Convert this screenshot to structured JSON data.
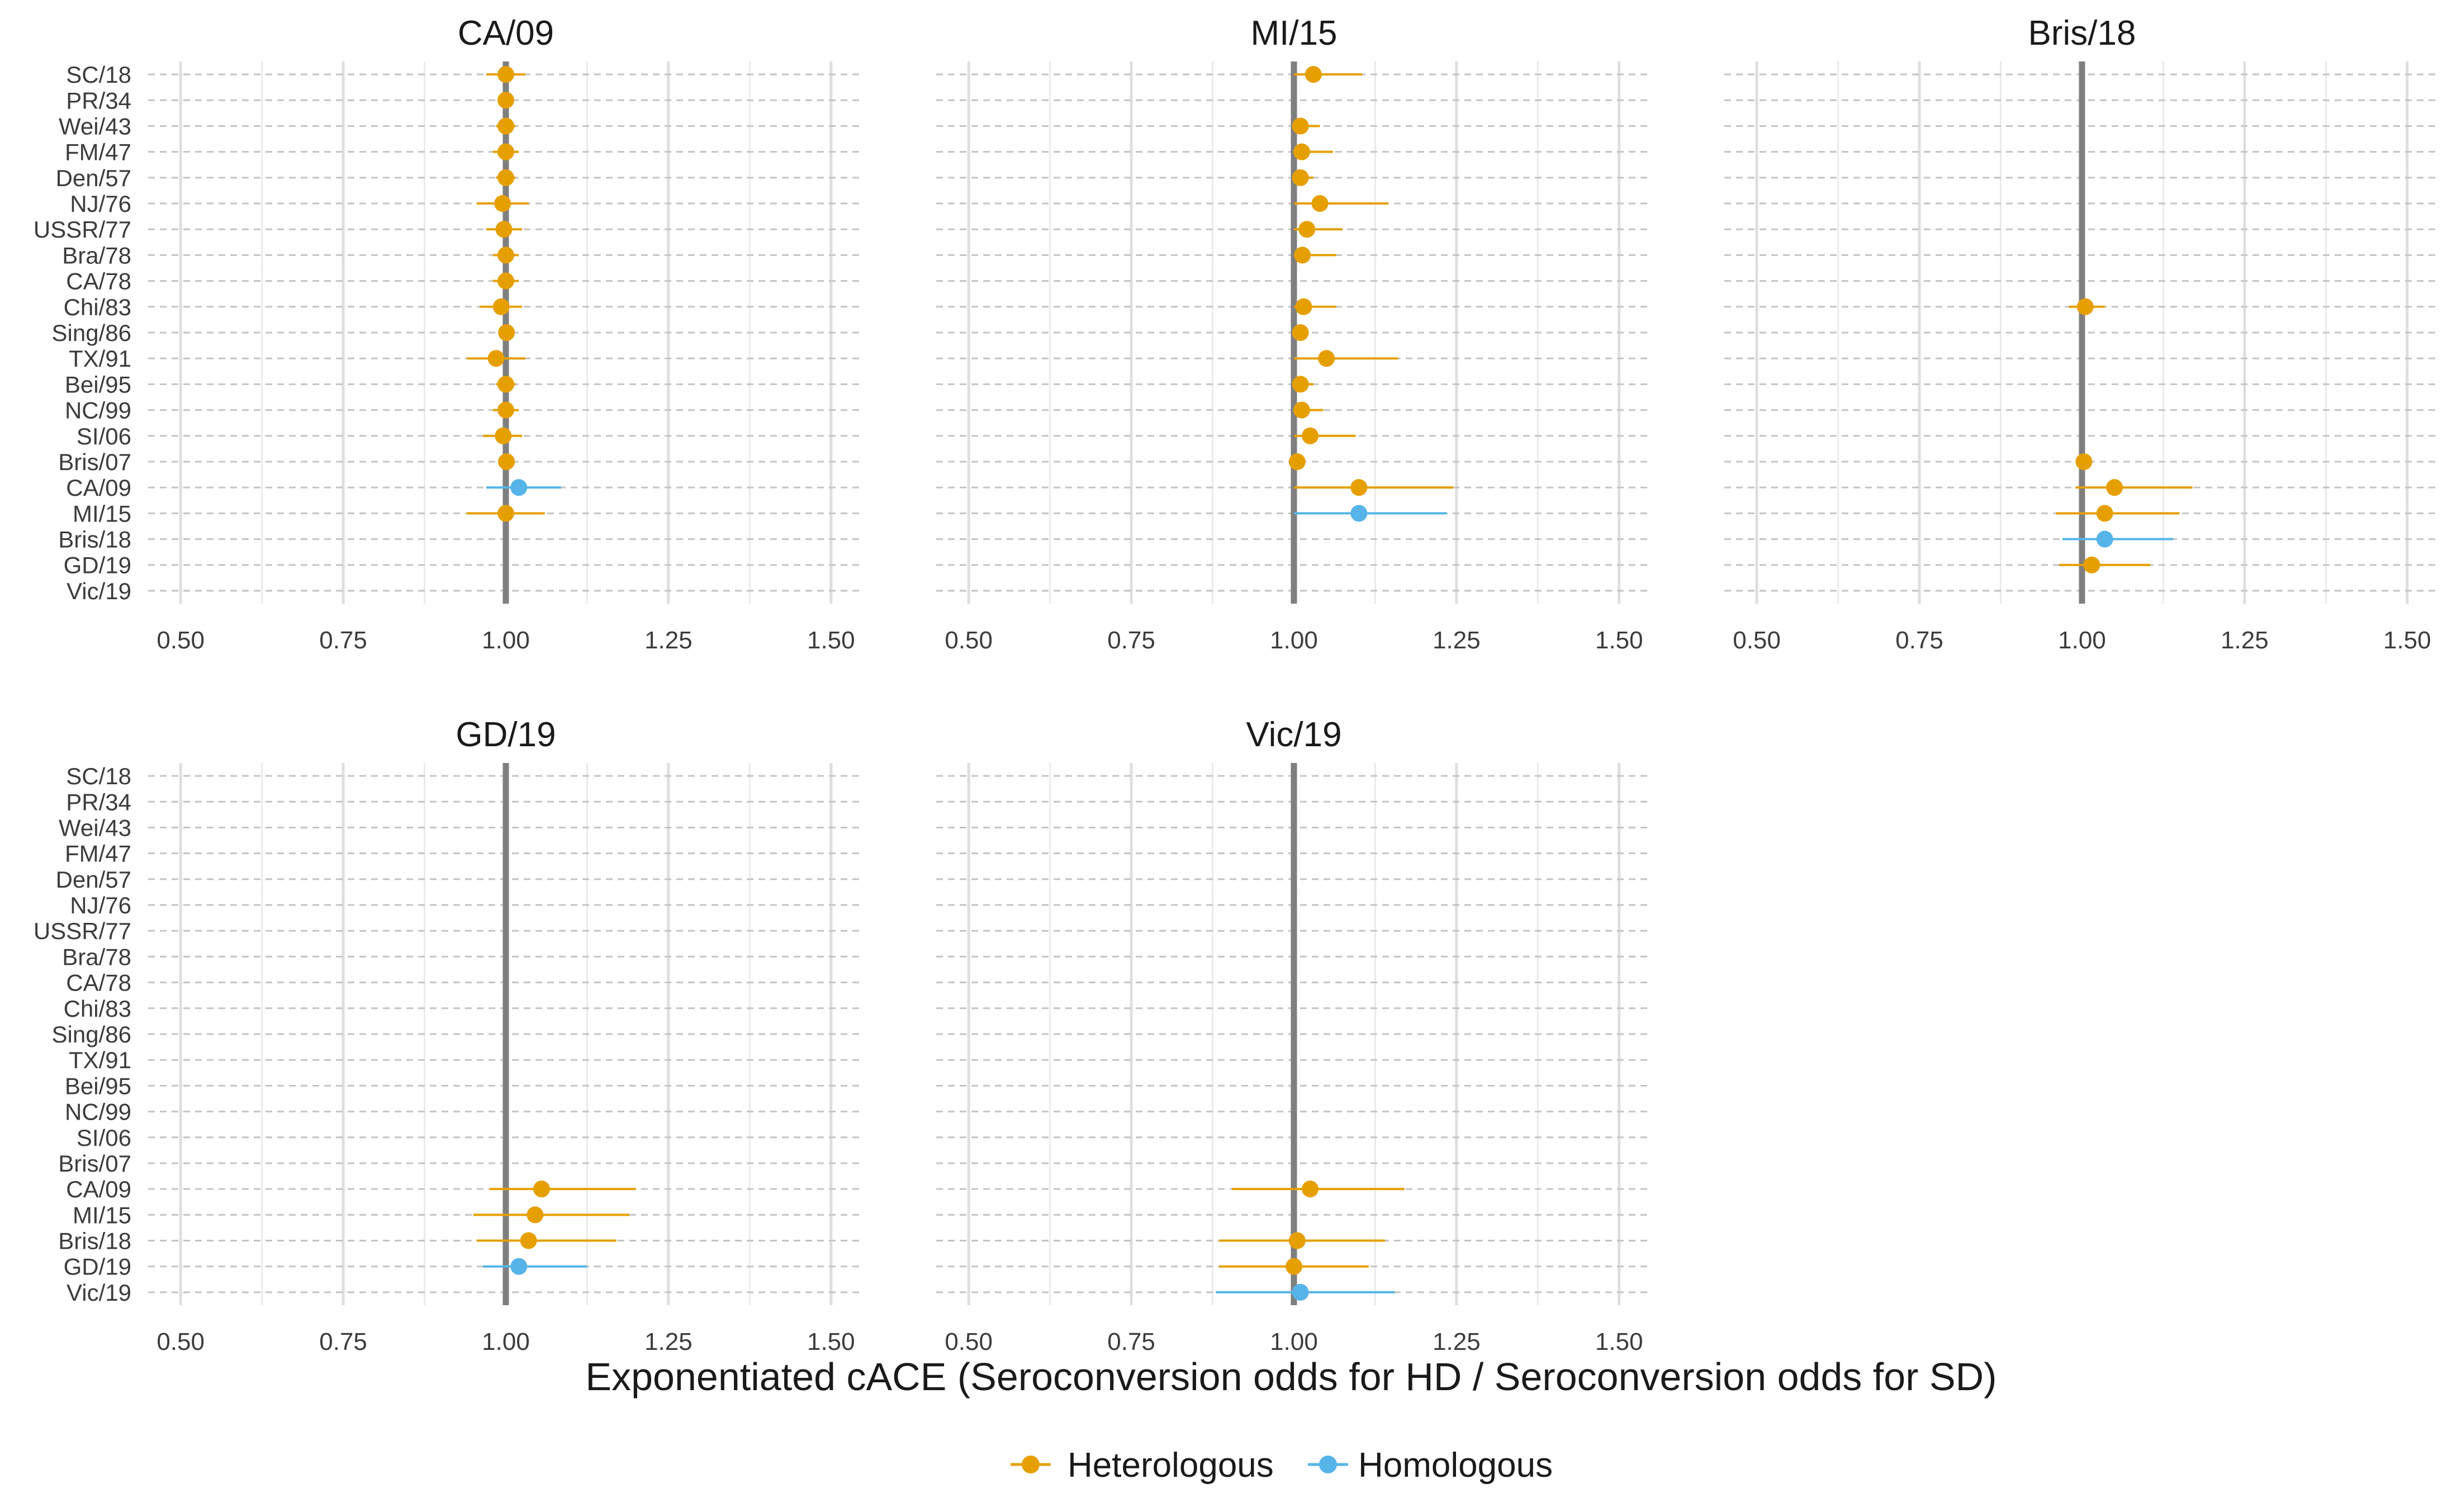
{
  "chart_data": {
    "type": "forest",
    "xlabel": "Exponentiated cACE (Seroconversion odds for HD / Seroconversion odds for SD)",
    "xlim": [
      0.45,
      1.55
    ],
    "xticks": [
      0.5,
      0.75,
      1.0,
      1.25,
      1.5
    ],
    "xtick_labels": [
      "0.50",
      "0.75",
      "1.00",
      "1.25",
      "1.50"
    ],
    "reference_line": 1.0,
    "grid": true,
    "legend": {
      "position": "bottom",
      "entries": [
        {
          "key": "heterologous",
          "label": "Heterologous",
          "color": "#E69F00"
        },
        {
          "key": "homologous",
          "label": "Homologous",
          "color": "#56B4E9"
        }
      ]
    },
    "strains": [
      "SC/18",
      "PR/34",
      "Wei/43",
      "FM/47",
      "Den/57",
      "NJ/76",
      "USSR/77",
      "Bra/78",
      "CA/78",
      "Chi/83",
      "Sing/86",
      "TX/91",
      "Bei/95",
      "NC/99",
      "SI/06",
      "Bris/07",
      "CA/09",
      "MI/15",
      "Bris/18",
      "GD/19",
      "Vic/19"
    ],
    "panels": [
      {
        "title": "CA/09",
        "points": [
          {
            "strain": "SC/18",
            "est": 1.0,
            "lo": 0.97,
            "hi": 1.03,
            "group": "heterologous"
          },
          {
            "strain": "PR/34",
            "est": 1.0,
            "lo": 0.995,
            "hi": 1.005,
            "group": "heterologous"
          },
          {
            "strain": "Wei/43",
            "est": 1.0,
            "lo": 0.985,
            "hi": 1.015,
            "group": "heterologous"
          },
          {
            "strain": "FM/47",
            "est": 1.0,
            "lo": 0.98,
            "hi": 1.02,
            "group": "heterologous"
          },
          {
            "strain": "Den/57",
            "est": 1.0,
            "lo": 0.985,
            "hi": 1.015,
            "group": "heterologous"
          },
          {
            "strain": "NJ/76",
            "est": 0.995,
            "lo": 0.955,
            "hi": 1.035,
            "group": "heterologous"
          },
          {
            "strain": "USSR/77",
            "est": 0.997,
            "lo": 0.97,
            "hi": 1.025,
            "group": "heterologous"
          },
          {
            "strain": "Bra/78",
            "est": 1.0,
            "lo": 0.98,
            "hi": 1.02,
            "group": "heterologous"
          },
          {
            "strain": "CA/78",
            "est": 1.0,
            "lo": 0.98,
            "hi": 1.02,
            "group": "heterologous"
          },
          {
            "strain": "Chi/83",
            "est": 0.993,
            "lo": 0.96,
            "hi": 1.025,
            "group": "heterologous"
          },
          {
            "strain": "Sing/86",
            "est": 1.001,
            "lo": 0.995,
            "hi": 1.005,
            "group": "heterologous"
          },
          {
            "strain": "TX/91",
            "est": 0.985,
            "lo": 0.94,
            "hi": 1.03,
            "group": "heterologous"
          },
          {
            "strain": "Bei/95",
            "est": 1.0,
            "lo": 0.985,
            "hi": 1.015,
            "group": "heterologous"
          },
          {
            "strain": "NC/99",
            "est": 1.0,
            "lo": 0.98,
            "hi": 1.02,
            "group": "heterologous"
          },
          {
            "strain": "SI/06",
            "est": 0.996,
            "lo": 0.965,
            "hi": 1.025,
            "group": "heterologous"
          },
          {
            "strain": "Bris/07",
            "est": 1.001,
            "lo": 0.995,
            "hi": 1.005,
            "group": "heterologous"
          },
          {
            "strain": "CA/09",
            "est": 1.02,
            "lo": 0.97,
            "hi": 1.085,
            "group": "homologous"
          },
          {
            "strain": "MI/15",
            "est": 1.0,
            "lo": 0.94,
            "hi": 1.06,
            "group": "heterologous"
          }
        ]
      },
      {
        "title": "MI/15",
        "points": [
          {
            "strain": "SC/18",
            "est": 1.03,
            "lo": 1.0,
            "hi": 1.105,
            "group": "heterologous"
          },
          {
            "strain": "Wei/43",
            "est": 1.01,
            "lo": 1.0,
            "hi": 1.04,
            "group": "heterologous"
          },
          {
            "strain": "FM/47",
            "est": 1.012,
            "lo": 1.0,
            "hi": 1.06,
            "group": "heterologous"
          },
          {
            "strain": "Den/57",
            "est": 1.01,
            "lo": 1.0,
            "hi": 1.03,
            "group": "heterologous"
          },
          {
            "strain": "NJ/76",
            "est": 1.04,
            "lo": 1.0,
            "hi": 1.145,
            "group": "heterologous"
          },
          {
            "strain": "USSR/77",
            "est": 1.02,
            "lo": 1.0,
            "hi": 1.075,
            "group": "heterologous"
          },
          {
            "strain": "Bra/78",
            "est": 1.013,
            "lo": 1.0,
            "hi": 1.065,
            "group": "heterologous"
          },
          {
            "strain": "Chi/83",
            "est": 1.015,
            "lo": 1.0,
            "hi": 1.065,
            "group": "heterologous"
          },
          {
            "strain": "Sing/86",
            "est": 1.01,
            "lo": 1.0,
            "hi": 1.02,
            "group": "heterologous"
          },
          {
            "strain": "TX/91",
            "est": 1.05,
            "lo": 1.0,
            "hi": 1.16,
            "group": "heterologous"
          },
          {
            "strain": "Bei/95",
            "est": 1.01,
            "lo": 1.0,
            "hi": 1.03,
            "group": "heterologous"
          },
          {
            "strain": "NC/99",
            "est": 1.012,
            "lo": 1.0,
            "hi": 1.045,
            "group": "heterologous"
          },
          {
            "strain": "SI/06",
            "est": 1.025,
            "lo": 1.0,
            "hi": 1.095,
            "group": "heterologous"
          },
          {
            "strain": "Bris/07",
            "est": 1.005,
            "lo": 1.0,
            "hi": 1.01,
            "group": "heterologous"
          },
          {
            "strain": "CA/09",
            "est": 1.1,
            "lo": 1.0,
            "hi": 1.245,
            "group": "heterologous"
          },
          {
            "strain": "MI/15",
            "est": 1.1,
            "lo": 1.0,
            "hi": 1.235,
            "group": "homologous"
          }
        ]
      },
      {
        "title": "Bris/18",
        "points": [
          {
            "strain": "Chi/83",
            "est": 1.005,
            "lo": 0.98,
            "hi": 1.035,
            "group": "heterologous"
          },
          {
            "strain": "Bris/07",
            "est": 1.003,
            "lo": 0.995,
            "hi": 1.01,
            "group": "heterologous"
          },
          {
            "strain": "CA/09",
            "est": 1.05,
            "lo": 0.99,
            "hi": 1.17,
            "group": "heterologous"
          },
          {
            "strain": "MI/15",
            "est": 1.035,
            "lo": 0.96,
            "hi": 1.15,
            "group": "heterologous"
          },
          {
            "strain": "Bris/18",
            "est": 1.035,
            "lo": 0.97,
            "hi": 1.14,
            "group": "homologous"
          },
          {
            "strain": "GD/19",
            "est": 1.015,
            "lo": 0.965,
            "hi": 1.105,
            "group": "heterologous"
          }
        ]
      },
      {
        "title": "GD/19",
        "points": [
          {
            "strain": "CA/09",
            "est": 1.055,
            "lo": 0.975,
            "hi": 1.2,
            "group": "heterologous"
          },
          {
            "strain": "MI/15",
            "est": 1.045,
            "lo": 0.95,
            "hi": 1.19,
            "group": "heterologous"
          },
          {
            "strain": "Bris/18",
            "est": 1.035,
            "lo": 0.955,
            "hi": 1.17,
            "group": "heterologous"
          },
          {
            "strain": "GD/19",
            "est": 1.02,
            "lo": 0.965,
            "hi": 1.125,
            "group": "homologous"
          }
        ]
      },
      {
        "title": "Vic/19",
        "points": [
          {
            "strain": "CA/09",
            "est": 1.025,
            "lo": 0.905,
            "hi": 1.17,
            "group": "heterologous"
          },
          {
            "strain": "Bris/18",
            "est": 1.005,
            "lo": 0.885,
            "hi": 1.14,
            "group": "heterologous"
          },
          {
            "strain": "GD/19",
            "est": 1.0,
            "lo": 0.885,
            "hi": 1.115,
            "group": "heterologous"
          },
          {
            "strain": "Vic/19",
            "est": 1.01,
            "lo": 0.88,
            "hi": 1.155,
            "group": "homologous"
          }
        ]
      }
    ]
  }
}
